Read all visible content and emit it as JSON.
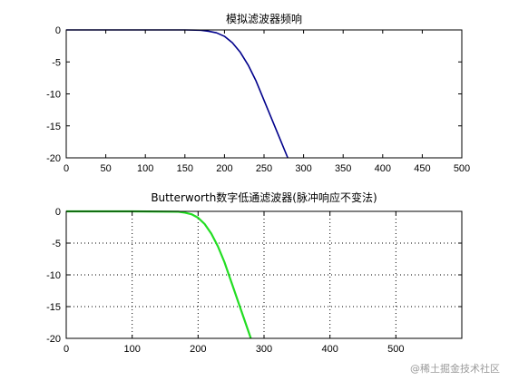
{
  "chart_data": [
    {
      "type": "line",
      "title": "模拟滤波器频响",
      "xlabel": "",
      "ylabel": "",
      "xlim": [
        0,
        500
      ],
      "ylim": [
        -20,
        0
      ],
      "xticks": [
        0,
        50,
        100,
        150,
        200,
        250,
        300,
        350,
        400,
        450,
        500
      ],
      "yticks": [
        0,
        -5,
        -10,
        -15,
        -20
      ],
      "grid": false,
      "series": [
        {
          "color": "#00008b",
          "x": [
            0,
            50,
            100,
            150,
            170,
            180,
            190,
            200,
            210,
            220,
            230,
            240,
            250,
            260,
            270,
            280
          ],
          "y": [
            0,
            0,
            0,
            0,
            -0.05,
            -0.2,
            -0.45,
            -1.0,
            -2.0,
            -3.5,
            -5.5,
            -8.0,
            -11.0,
            -14.0,
            -17.0,
            -20.0
          ]
        }
      ]
    },
    {
      "type": "line",
      "title": "Butterworth数字低通滤波器(脉冲响应不变法)",
      "xlabel": "",
      "ylabel": "",
      "xlim": [
        0,
        600
      ],
      "ylim": [
        -20,
        0
      ],
      "xticks": [
        0,
        100,
        200,
        300,
        400,
        500
      ],
      "yticks": [
        0,
        -5,
        -10,
        -15,
        -20
      ],
      "grid": true,
      "series": [
        {
          "color": "#22dd22",
          "x": [
            0,
            100,
            170,
            180,
            190,
            200,
            210,
            220,
            230,
            240,
            250,
            260,
            270,
            280
          ],
          "y": [
            0,
            0,
            -0.05,
            -0.2,
            -0.45,
            -1.0,
            -2.0,
            -3.5,
            -5.5,
            -8.0,
            -11.0,
            -14.0,
            -17.0,
            -20.0
          ]
        }
      ]
    }
  ],
  "watermark": "@稀土掘金技术社区"
}
